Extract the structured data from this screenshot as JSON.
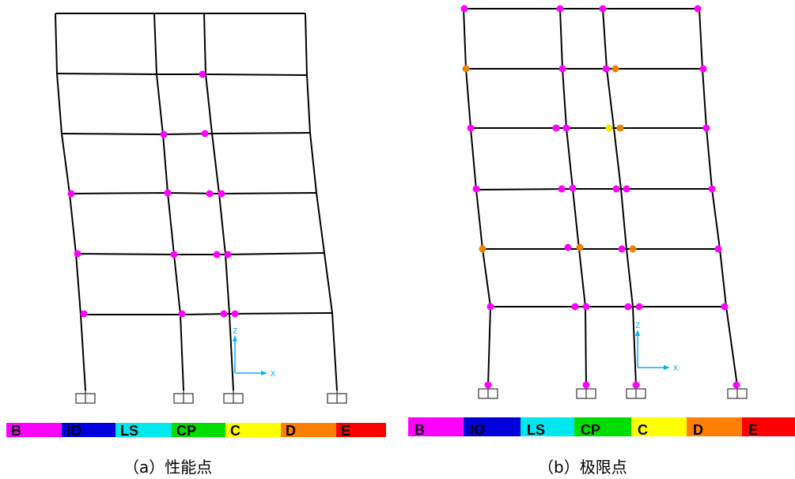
{
  "figure": {
    "captions": {
      "a": "（a）性能点",
      "b": "（b）极限点"
    },
    "axis_labels": {
      "z": "Z",
      "x": "X"
    },
    "colors": {
      "frame": "#000000",
      "support": "#333333",
      "axis": "#00b4ff",
      "hinge_B": "#ff00ff",
      "hinge_C": "#f0e800",
      "hinge_D": "#f08000"
    },
    "legend": [
      {
        "label": "B",
        "color": "#ff00ff"
      },
      {
        "label": "IO",
        "color": "#0000dd"
      },
      {
        "label": "LS",
        "color": "#00e8ee"
      },
      {
        "label": "CP",
        "color": "#00dd00"
      },
      {
        "label": "C",
        "color": "#ffff00"
      },
      {
        "label": "D",
        "color": "#ff8000"
      },
      {
        "label": "E",
        "color": "#ff0000"
      }
    ]
  }
}
